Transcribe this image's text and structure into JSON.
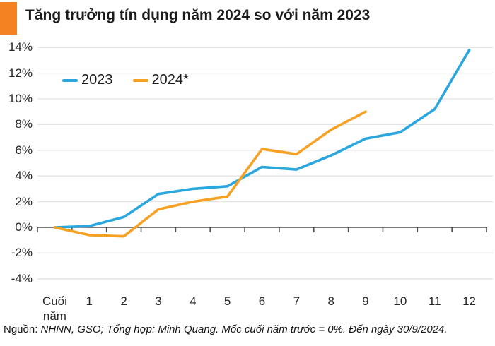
{
  "header": {
    "title": "Tăng trưởng tín dụng năm 2024 so với năm 2023"
  },
  "footer": {
    "label": "Nguồn:",
    "text": "NHNN, GSO; Tổng hợp: Minh Quang. Mốc cuối năm trước = 0%. Đến ngày 30/9/2024."
  },
  "colors": {
    "accent": "#f58220",
    "series_2023": "#2aa7de",
    "series_2024": "#f6a124",
    "grid": "#e3e3e3",
    "axis": "#4d4d4d",
    "text": "#262626"
  },
  "chart_data": {
    "type": "line",
    "title": "Tăng trưởng tín dụng năm 2024 so với năm 2023",
    "categories": [
      "Cuối\nnăm",
      "1",
      "2",
      "3",
      "4",
      "5",
      "6",
      "7",
      "8",
      "9",
      "10",
      "11",
      "12"
    ],
    "series": [
      {
        "name": "2023",
        "color_key": "series_2023",
        "values": [
          0,
          0.1,
          0.8,
          2.6,
          3.0,
          3.2,
          4.7,
          4.5,
          5.6,
          6.9,
          7.4,
          9.2,
          13.8
        ]
      },
      {
        "name": "2024*",
        "color_key": "series_2024",
        "values": [
          0,
          -0.6,
          -0.7,
          1.4,
          2.0,
          2.4,
          6.1,
          5.7,
          7.6,
          9.0
        ]
      }
    ],
    "xlabel": "",
    "ylabel": "",
    "y_tick_labels": [
      "14%",
      "12%",
      "10%",
      "8%",
      "6%",
      "4%",
      "2%",
      "0%",
      "-2%",
      "-4%"
    ],
    "y_tick_values": [
      14,
      12,
      10,
      8,
      6,
      4,
      2,
      0,
      -2,
      -4
    ],
    "ylim": [
      -4,
      14
    ],
    "grid": true,
    "legend_position": "top-left",
    "baseline_note": "Mốc cuối năm trước = 0%"
  }
}
